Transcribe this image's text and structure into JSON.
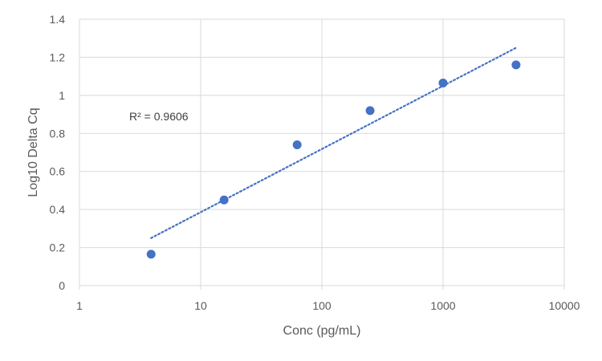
{
  "chart_data": {
    "type": "scatter",
    "x_scale": "log",
    "xlabel": "Conc (pg/mL)",
    "ylabel": "Log10 Delta Cq",
    "xlim": [
      1,
      10000
    ],
    "ylim": [
      0,
      1.4
    ],
    "x_ticks": [
      "1",
      "10",
      "100",
      "1000",
      "10000"
    ],
    "y_ticks": [
      "0",
      "0.2",
      "0.4",
      "0.6",
      "0.8",
      "1",
      "1.2",
      "1.4"
    ],
    "grid": true,
    "legend": "none",
    "series": [
      {
        "marker_color": "#4472C4",
        "x": [
          3.9,
          15.6,
          62.5,
          250,
          1000,
          4000
        ],
        "y": [
          0.165,
          0.45,
          0.74,
          0.92,
          1.065,
          1.16
        ]
      }
    ],
    "trendline": {
      "kind": "logarithmic",
      "style": "dotted",
      "color": "#4472C4",
      "x": [
        3.9,
        4000
      ],
      "y": [
        0.25,
        1.25
      ],
      "label": "R² = 0.9606"
    },
    "colors": {
      "gridline": "#D9D9D9",
      "text": "#595959"
    }
  }
}
